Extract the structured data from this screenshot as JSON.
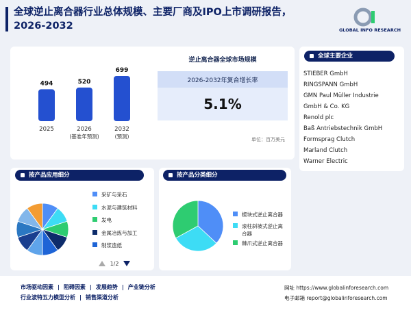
{
  "header": {
    "title": "全球逆止离合器行业总体规模、主要厂商及IPO上市调研报告，2026-2032",
    "logo": "GLOBAL INFO RESEARCH"
  },
  "market": {
    "chart": {
      "type": "bar",
      "categories": [
        "2025",
        "2026",
        "2032"
      ],
      "sublabels": [
        null,
        "(基准年预测)",
        "(预测)"
      ],
      "values": [
        494,
        520,
        699
      ],
      "color": "#2450d0"
    },
    "title": "逆止离合器全球市场规模",
    "cagr_label": "2026-2032年复合增长率",
    "cagr": "5.1%",
    "unit": "单位：百万美元"
  },
  "companies": {
    "title": "全球主要企业",
    "items": [
      "STIEBER GmbH",
      "RINGSPANN GmbH",
      "GMN Paul Müller Industrie",
      "GmbH & Co. KG",
      "Renold plc",
      "Baß Antriebstechnik GmbH",
      "Formsprag Clutch",
      "Marland Clutch",
      "Warner Electric"
    ]
  },
  "application": {
    "title": "按产品应用细分",
    "pagination": "1/2",
    "chart": {
      "type": "pie",
      "categories": [
        "采矿与采石",
        "水泥与建筑材料",
        "发电",
        "金属冶炼与加工",
        "制浆造纸",
        null,
        null,
        null,
        null,
        null
      ],
      "values": [
        10,
        10,
        10,
        10,
        10,
        10,
        10,
        10,
        10,
        10
      ],
      "colors": [
        "#4f8ef7",
        "#3ddcf5",
        "#2ecc71",
        "#0d2c6b",
        "#1e64d6",
        "#5fa4ea",
        "#1a3f8f",
        "#2b78c2",
        "#82b6ea",
        "#f39c33"
      ]
    }
  },
  "product": {
    "title": "按产品分类细分",
    "chart": {
      "type": "pie",
      "categories": [
        "楔块式逆止离合器",
        "滚柱斜坡式逆止离合器",
        "棘爪式逆止离合器"
      ],
      "values": [
        37,
        30,
        33
      ],
      "colors": [
        "#4f8ef7",
        "#3ddcf5",
        "#2ecc71"
      ]
    }
  },
  "footer": {
    "links": [
      "市场驱动因素",
      "阻碍因素",
      "发展趋势",
      "产业链分析",
      "行业波特五力模型分析",
      "销售渠道分析"
    ],
    "website_label": "网址",
    "website": "https://www.globalinforesearch.com",
    "email_label": "电子邮箱",
    "email": "report@globalinforesearch.com"
  }
}
